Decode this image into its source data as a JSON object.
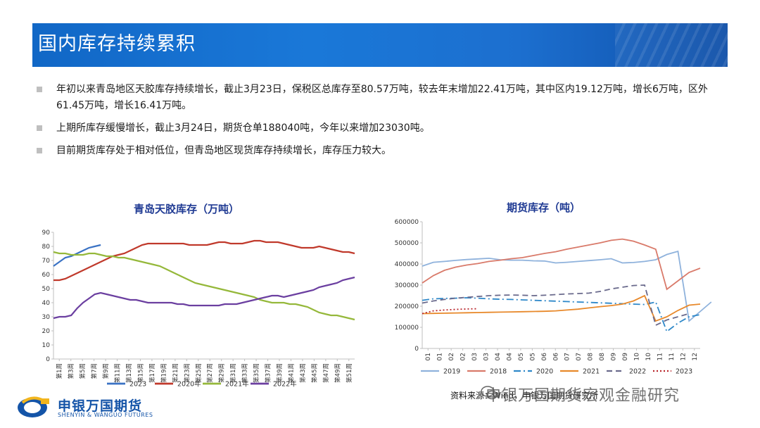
{
  "header": {
    "title": "国内库存持续累积"
  },
  "bullets": [
    {
      "text": "年初以来青岛地区天胶库存持续增长，截止3月23日，保税区总库存至80.57万吨，较去年末增加22.41万吨，其中区内19.12万吨，增长6万吨，区外61.45万吨，增长16.41万吨。"
    },
    {
      "text": "上期所库存缓慢增长，截止3月24日，期货仓单188040吨，今年以来增加23030吨。"
    },
    {
      "text": "目前期货库存处于相对低位，但青岛地区现货库存持续增长，库存压力较大。"
    }
  ],
  "footer": {
    "logo_cn": "申银万国期货",
    "logo_en": "SHENYIN & WANGUO FUTURES",
    "source": "资料来源：Wind，申银万国期货研究所",
    "watermark": "申银万国期货宏观金融研究"
  },
  "colors": {
    "banner": "#1a78d8",
    "s2023": "#3a72c4",
    "s2020": "#c0392b",
    "s2021": "#95b83a",
    "s2022": "#6b3fa0",
    "f2019": "#8fb2dc",
    "f2018": "#d97a6a",
    "f2020": "#2e88c9",
    "f2021": "#e8892b",
    "f2022": "#6a6a8c",
    "f2023": "#b8252b"
  },
  "chart_data": [
    {
      "type": "line",
      "title": "青岛天胶库存（万吨）",
      "ylim": [
        0,
        90
      ],
      "yticks": [
        0,
        10,
        20,
        30,
        40,
        50,
        60,
        70,
        80,
        90
      ],
      "x_labels": [
        "第1周",
        "第3周",
        "第5周",
        "第7周",
        "第9周",
        "第11周",
        "第13周",
        "第15周",
        "第17周",
        "第19周",
        "第21周",
        "第23周",
        "第25周",
        "第27周",
        "第29周",
        "第31周",
        "第33周",
        "第35周",
        "第37周",
        "第39周",
        "第41周",
        "第43周",
        "第45周",
        "第47周",
        "第49周",
        "第51周"
      ],
      "legend_position": "bottom",
      "series": [
        {
          "name": "2023",
          "color": "#3a72c4",
          "values": [
            66,
            69,
            72,
            73,
            75,
            77,
            79,
            80,
            81
          ]
        },
        {
          "name": "2020年",
          "color": "#c0392b",
          "values": [
            56,
            56,
            57,
            59,
            61,
            63,
            65,
            67,
            69,
            71,
            73,
            74,
            75,
            77,
            79,
            81,
            82,
            82,
            82,
            82,
            82,
            82,
            82,
            81,
            81,
            81,
            81,
            82,
            83,
            83,
            82,
            82,
            82,
            83,
            84,
            84,
            83,
            83,
            83,
            82,
            81,
            80,
            79,
            79,
            79,
            80,
            79,
            78,
            77,
            76,
            76,
            75
          ]
        },
        {
          "name": "2021年",
          "color": "#95b83a",
          "values": [
            76,
            75,
            75,
            74,
            74,
            74,
            75,
            75,
            74,
            73,
            73,
            72,
            72,
            71,
            70,
            69,
            68,
            67,
            66,
            64,
            62,
            60,
            58,
            56,
            54,
            53,
            52,
            51,
            50,
            49,
            48,
            47,
            46,
            45,
            44,
            42,
            41,
            40,
            40,
            40,
            39,
            39,
            38,
            37,
            35,
            33,
            32,
            31,
            31,
            30,
            29,
            28
          ]
        },
        {
          "name": "2022年",
          "color": "#6b3fa0",
          "values": [
            29,
            30,
            30,
            31,
            36,
            40,
            43,
            46,
            47,
            46,
            45,
            44,
            43,
            42,
            42,
            41,
            40,
            40,
            40,
            40,
            40,
            39,
            39,
            38,
            38,
            38,
            38,
            38,
            38,
            39,
            39,
            39,
            40,
            41,
            42,
            43,
            44,
            45,
            45,
            44,
            45,
            46,
            47,
            48,
            49,
            51,
            52,
            53,
            54,
            56,
            57,
            58
          ]
        }
      ]
    },
    {
      "type": "line",
      "title": "期货库存（吨）",
      "ylim": [
        0,
        600000
      ],
      "yticks": [
        0,
        100000,
        200000,
        300000,
        400000,
        500000,
        600000
      ],
      "ytick_labels": [
        "0",
        "100000",
        "200000",
        "300000",
        "400000",
        "500000",
        "600000"
      ],
      "x_labels": [
        "01",
        "01",
        "02",
        "02",
        "03",
        "03",
        "04",
        "04",
        "05",
        "05",
        "06",
        "06",
        "07",
        "07",
        "08",
        "08",
        "09",
        "09",
        "10",
        "10",
        "11",
        "11",
        "12",
        "12"
      ],
      "legend_position": "bottom",
      "series": [
        {
          "name": "2019",
          "color": "#8fb2dc",
          "dash": "none",
          "values": [
            390000,
            408000,
            412000,
            417000,
            421000,
            424000,
            427000,
            420000,
            418000,
            418000,
            415000,
            414000,
            405000,
            408000,
            412000,
            416000,
            420000,
            425000,
            405000,
            407000,
            412000,
            420000,
            445000,
            460000,
            130000,
            175000,
            220000
          ]
        },
        {
          "name": "2018",
          "color": "#d97a6a",
          "dash": "none",
          "values": [
            310000,
            345000,
            370000,
            385000,
            395000,
            402000,
            412000,
            418000,
            425000,
            430000,
            440000,
            450000,
            458000,
            470000,
            480000,
            490000,
            500000,
            512000,
            518000,
            508000,
            490000,
            470000,
            280000,
            320000,
            360000,
            380000
          ]
        },
        {
          "name": "2020",
          "color": "#2e88c9",
          "dash": "10,4,2,4",
          "values": [
            228000,
            235000,
            237000,
            238000,
            240000,
            238000,
            235000,
            233000,
            232000,
            230000,
            228000,
            226000,
            224000,
            222000,
            220000,
            218000,
            216000,
            214000,
            212000,
            210000,
            208000,
            220000,
            80000,
            120000,
            150000,
            160000
          ]
        },
        {
          "name": "2021",
          "color": "#e8892b",
          "dash": "none",
          "values": [
            165000,
            166000,
            167000,
            168000,
            169000,
            170000,
            171000,
            172000,
            173000,
            174000,
            175000,
            176000,
            178000,
            182000,
            186000,
            192000,
            198000,
            203000,
            210000,
            225000,
            250000,
            130000,
            150000,
            180000,
            205000,
            210000
          ]
        },
        {
          "name": "2022",
          "color": "#6a6a8c",
          "dash": "8,5",
          "values": [
            215000,
            225000,
            232000,
            238000,
            242000,
            246000,
            250000,
            252000,
            253000,
            252000,
            250000,
            252000,
            255000,
            258000,
            260000,
            262000,
            270000,
            282000,
            290000,
            298000,
            300000,
            110000,
            135000,
            150000,
            165000
          ]
        },
        {
          "name": "2023",
          "color": "#b8252b",
          "dash": "2,3",
          "values": [
            165000,
            178000,
            182000,
            185000,
            187000,
            188040
          ]
        }
      ]
    }
  ]
}
